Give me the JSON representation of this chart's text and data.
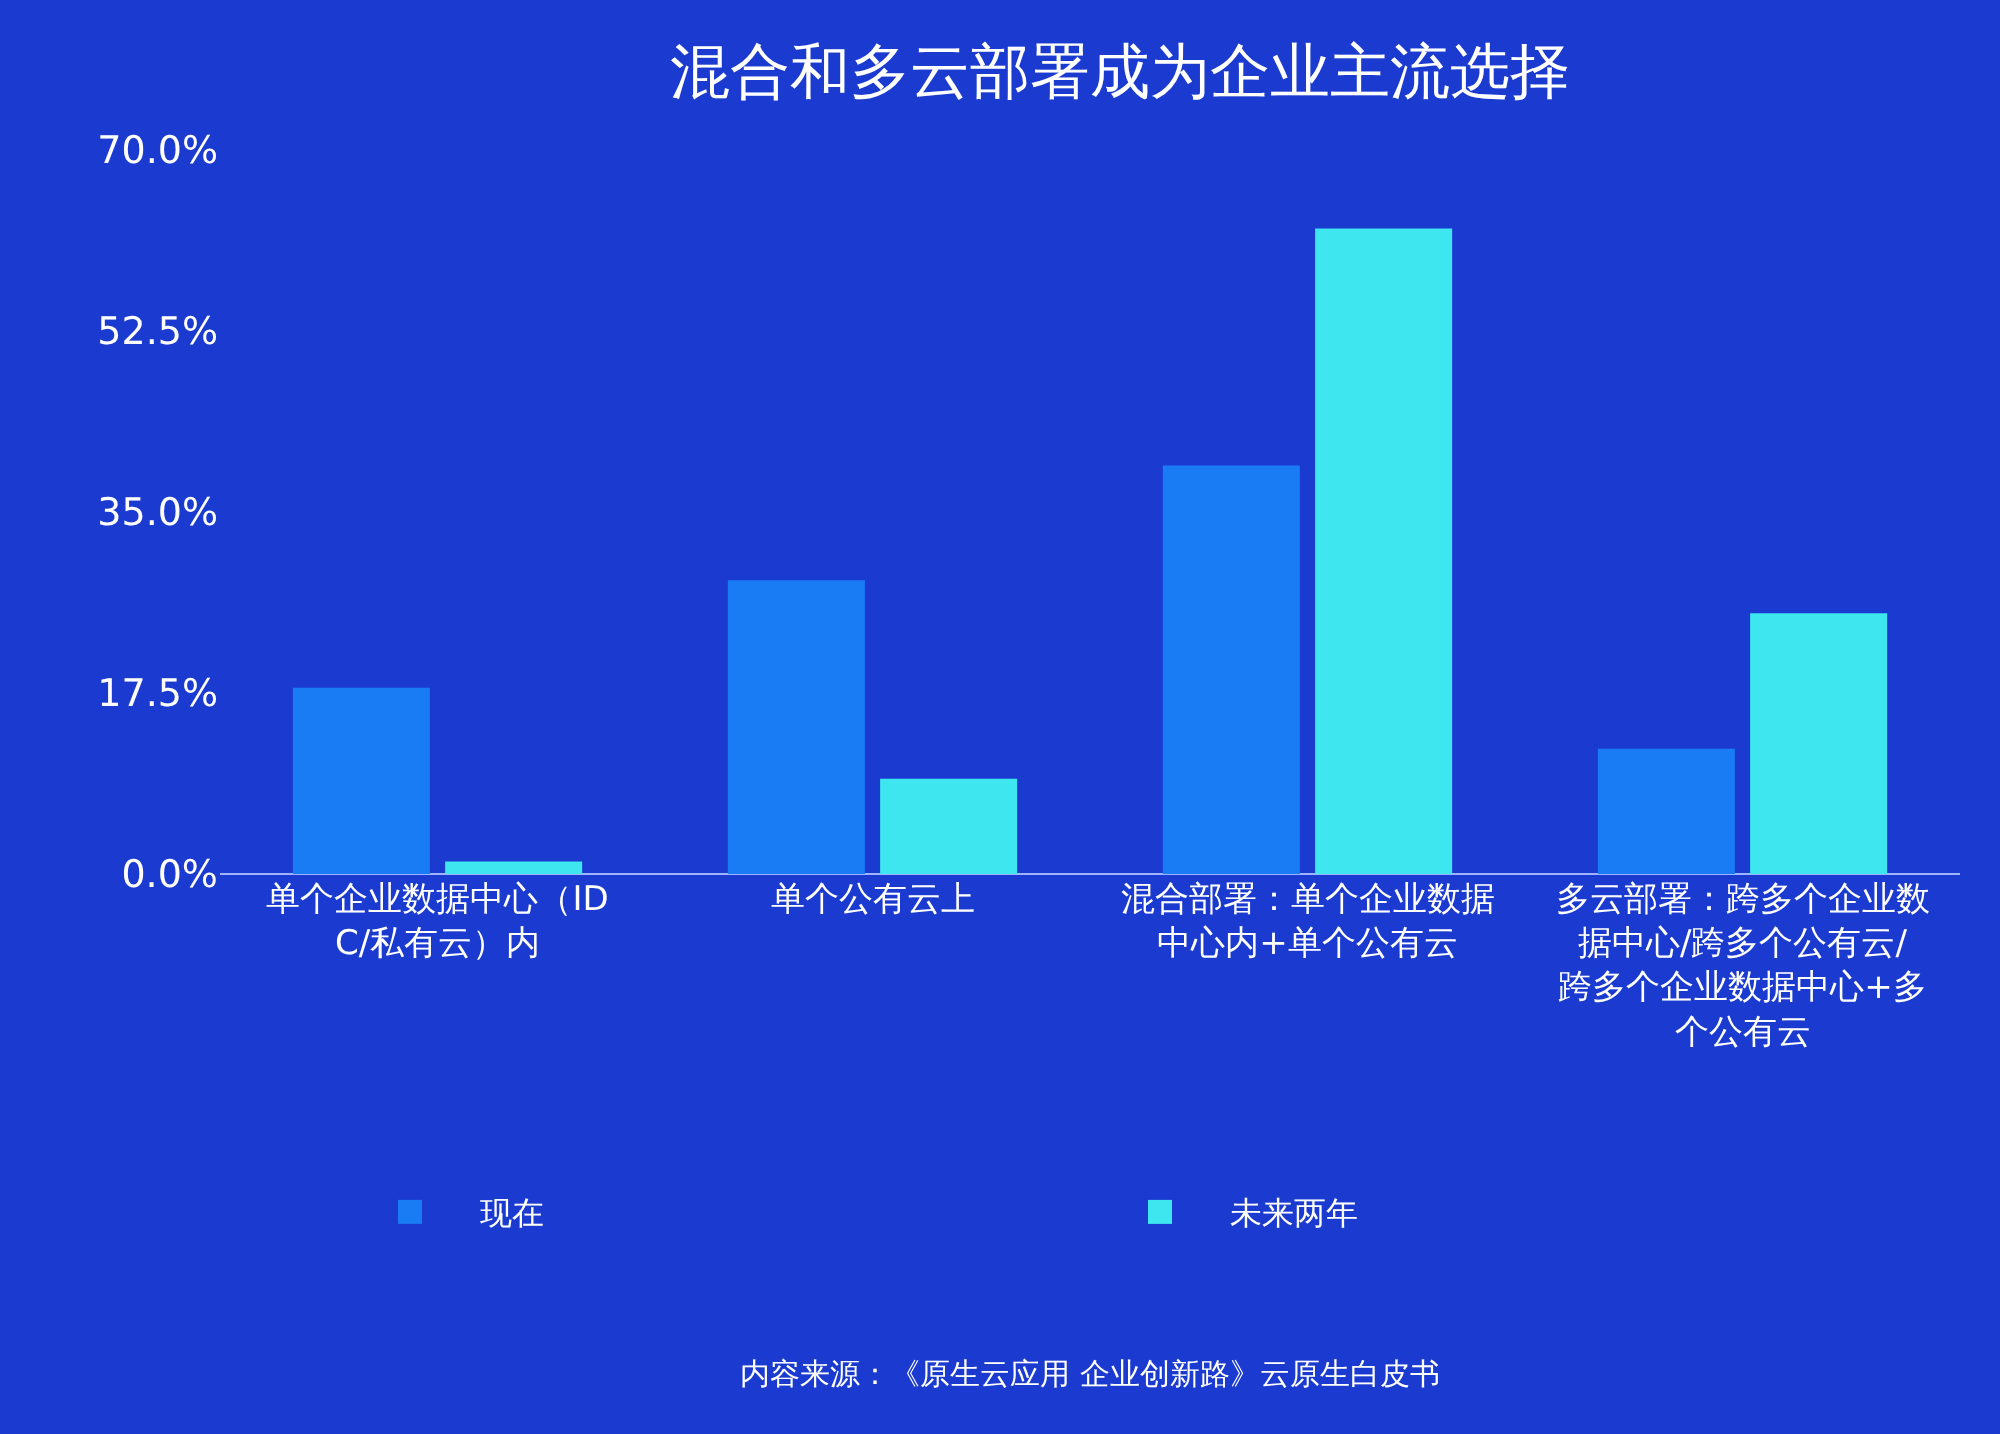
{
  "chart_data": {
    "type": "bar",
    "title": "混合和多云部署成为企业主流选择",
    "categories": [
      "单个企业数据中心（IDC/私有云）内",
      "单个公有云上",
      "混合部署：单个企业数据中心内+单个公有云",
      "多云部署：跨多个企业数据中心/跨多个公有云/跨多个企业数据中心+多个公有云"
    ],
    "series": [
      {
        "name": "现在",
        "color": "#1a7cf5",
        "values": [
          18.0,
          28.4,
          39.5,
          12.1
        ]
      },
      {
        "name": "未来两年",
        "color": "#3ee6f0",
        "values": [
          1.2,
          9.2,
          62.4,
          25.2
        ]
      }
    ],
    "ylim": [
      0,
      70
    ],
    "yticks": [
      {
        "value": 0,
        "label": "0.0%"
      },
      {
        "value": 17.5,
        "label": "17.5%"
      },
      {
        "value": 35,
        "label": "35.0%"
      },
      {
        "value": 52.5,
        "label": "52.5%"
      },
      {
        "value": 70,
        "label": "70.0%"
      }
    ],
    "grid": false,
    "legend": "bottom",
    "annotations": [
      "内容来源：《原生云应用 企业创新路》云原生白皮书"
    ]
  }
}
